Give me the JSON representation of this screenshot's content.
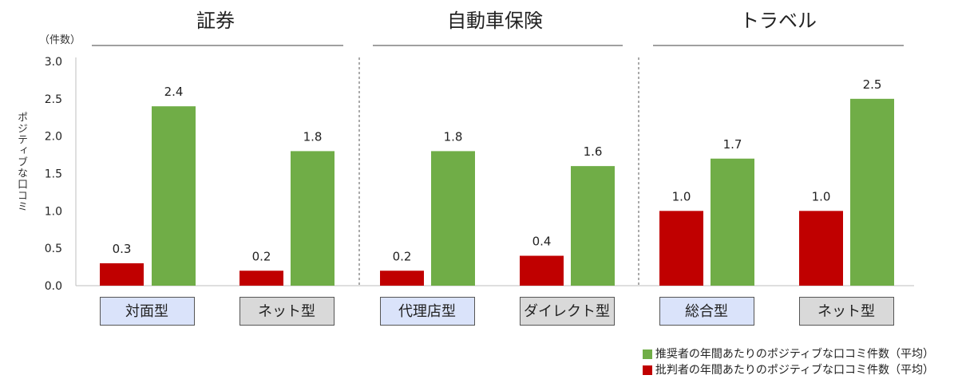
{
  "chart_data": {
    "type": "bar",
    "unit_label": "（件数）",
    "ylabel": "ポジティブな口コミ",
    "ylim": [
      0,
      3.0
    ],
    "yticks": [
      "3.0",
      "2.5",
      "2.0",
      "1.5",
      "1.0",
      "0.5",
      "0.0"
    ],
    "groups": [
      {
        "title": "証券",
        "categories": [
          {
            "label": "対面型",
            "style": "blue",
            "critic": 0.3,
            "promoter": 2.4,
            "critic_label": "0.3",
            "promoter_label": "2.4"
          },
          {
            "label": "ネット型",
            "style": "gray",
            "critic": 0.2,
            "promoter": 1.8,
            "critic_label": "0.2",
            "promoter_label": "1.8"
          }
        ]
      },
      {
        "title": "自動車保険",
        "categories": [
          {
            "label": "代理店型",
            "style": "blue",
            "critic": 0.2,
            "promoter": 1.8,
            "critic_label": "0.2",
            "promoter_label": "1.8"
          },
          {
            "label": "ダイレクト型",
            "style": "gray",
            "critic": 0.4,
            "promoter": 1.6,
            "critic_label": "0.4",
            "promoter_label": "1.6"
          }
        ]
      },
      {
        "title": "トラベル",
        "categories": [
          {
            "label": "総合型",
            "style": "blue",
            "critic": 1.0,
            "promoter": 1.7,
            "critic_label": "1.0",
            "promoter_label": "1.7"
          },
          {
            "label": "ネット型",
            "style": "gray",
            "critic": 1.0,
            "promoter": 2.5,
            "critic_label": "1.0",
            "promoter_label": "2.5"
          }
        ]
      }
    ],
    "series": [
      {
        "name": "推奨者の年間あたりのポジティブな口コミ件数（平均）",
        "key": "promoter",
        "color": "#70ad47"
      },
      {
        "name": "批判者の年間あたりのポジティブな口コミ件数（平均）",
        "key": "critic",
        "color": "#c00000"
      }
    ],
    "category_box_colors": {
      "blue": "#dae3fa",
      "gray": "#d9d9d9"
    }
  }
}
